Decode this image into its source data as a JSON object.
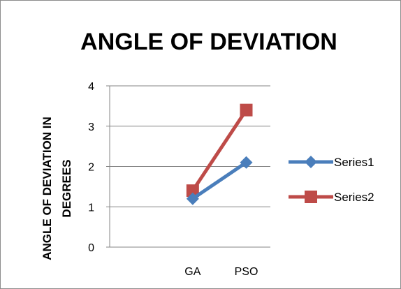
{
  "chart_data": {
    "type": "line",
    "title": "ANGLE OF DEVIATION",
    "ylabel_lines": [
      "ANGLE OF DEVIATION IN",
      "DEGREES"
    ],
    "xlabel": "",
    "categories": [
      "GA",
      "PSO"
    ],
    "ylim": [
      0,
      4
    ],
    "yticks": [
      0,
      1,
      2,
      3,
      4
    ],
    "grid": "horizontal",
    "legend_position": "right",
    "series": [
      {
        "name": "Series1",
        "values": [
          1.2,
          2.1
        ],
        "color": "#4a7ebb",
        "marker": "diamond"
      },
      {
        "name": "Series2",
        "values": [
          1.4,
          3.4
        ],
        "color": "#be4b48",
        "marker": "square"
      }
    ]
  }
}
